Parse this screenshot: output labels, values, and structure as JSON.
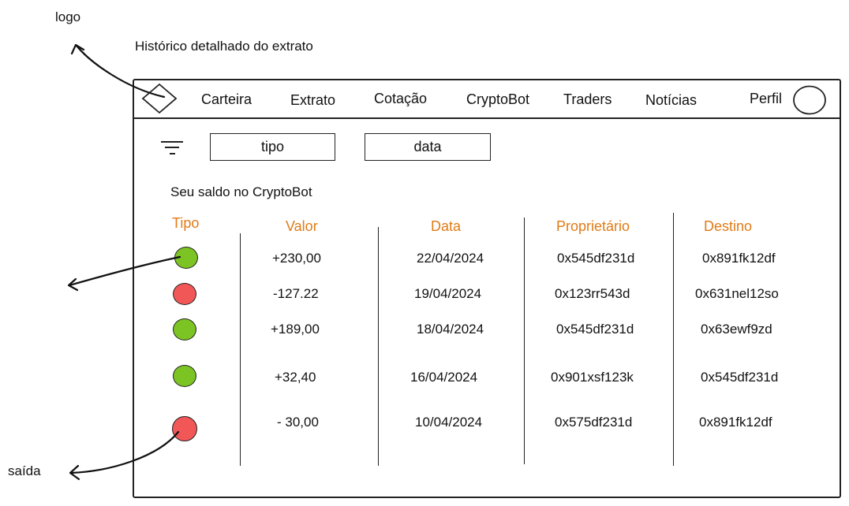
{
  "annotations": {
    "logo_label": "logo",
    "subtitle": "Histórico detalhado do extrato",
    "exit_label": "saída"
  },
  "nav": {
    "items": [
      "Carteira",
      "Extrato",
      "Cotação",
      "CryptoBot",
      "Traders",
      "Notícias"
    ],
    "profile_label": "Perfil"
  },
  "filters": {
    "type_label": "tipo",
    "date_label": "data"
  },
  "balance_label": "Seu saldo no CryptoBot",
  "table": {
    "headers": [
      "Tipo",
      "Valor",
      "Data",
      "Proprietário",
      "Destino"
    ],
    "rows": [
      {
        "tipo": "entrada",
        "valor": "+230,00",
        "data": "22/04/2024",
        "proprietario": "0x545df231d",
        "destino": "0x891fk12df"
      },
      {
        "tipo": "saida",
        "valor": "-127.22",
        "data": "19/04/2024",
        "proprietario": "0x123rr543d",
        "destino": "0x631nel12so"
      },
      {
        "tipo": "entrada",
        "valor": "+189,00",
        "data": "18/04/2024",
        "proprietario": "0x545df231d",
        "destino": "0x63ewf9zd"
      },
      {
        "tipo": "entrada",
        "valor": "+32,40",
        "data": "16/04/2024",
        "proprietario": "0x901xsf123k",
        "destino": "0x545df231d"
      },
      {
        "tipo": "saida",
        "valor": "- 30,00",
        "data": "10/04/2024",
        "proprietario": "0x575df231d",
        "destino": "0x891fk12df"
      }
    ]
  },
  "colors": {
    "header": "#e07b16",
    "entrada": "#7cc424",
    "saida": "#f25757"
  },
  "icons": {
    "logo": "diamond-logo-icon",
    "filter": "filter-icon",
    "profile": "profile-avatar-icon"
  }
}
